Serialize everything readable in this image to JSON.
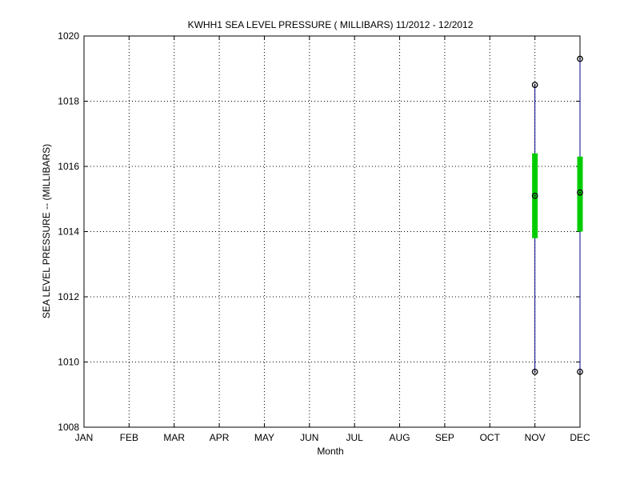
{
  "chart_data": {
    "type": "box",
    "title": "KWHH1  SEA LEVEL PRESSURE ( MILLIBARS) 11/2012 - 12/2012",
    "xlabel": "Month",
    "ylabel": "SEA LEVEL PRESSURE -- (MILLIBARS)",
    "categories": [
      "JAN",
      "FEB",
      "MAR",
      "APR",
      "MAY",
      "JUN",
      "JUL",
      "AUG",
      "SEP",
      "OCT",
      "NOV",
      "DEC"
    ],
    "ylim": [
      1008,
      1020
    ],
    "yticks": [
      1008,
      1010,
      1012,
      1014,
      1016,
      1018,
      1020
    ],
    "grid": true,
    "colors": {
      "whisker": "#00008b",
      "box": "#00cc00",
      "grid": "#000000"
    },
    "boxes": [
      {
        "category": "NOV",
        "min": 1009.7,
        "q1": 1013.8,
        "median": 1015.1,
        "q3": 1016.4,
        "max": 1018.5
      },
      {
        "category": "DEC",
        "min": 1009.7,
        "q1": 1014.0,
        "median": 1015.2,
        "q3": 1016.3,
        "max": 1019.3
      }
    ]
  }
}
